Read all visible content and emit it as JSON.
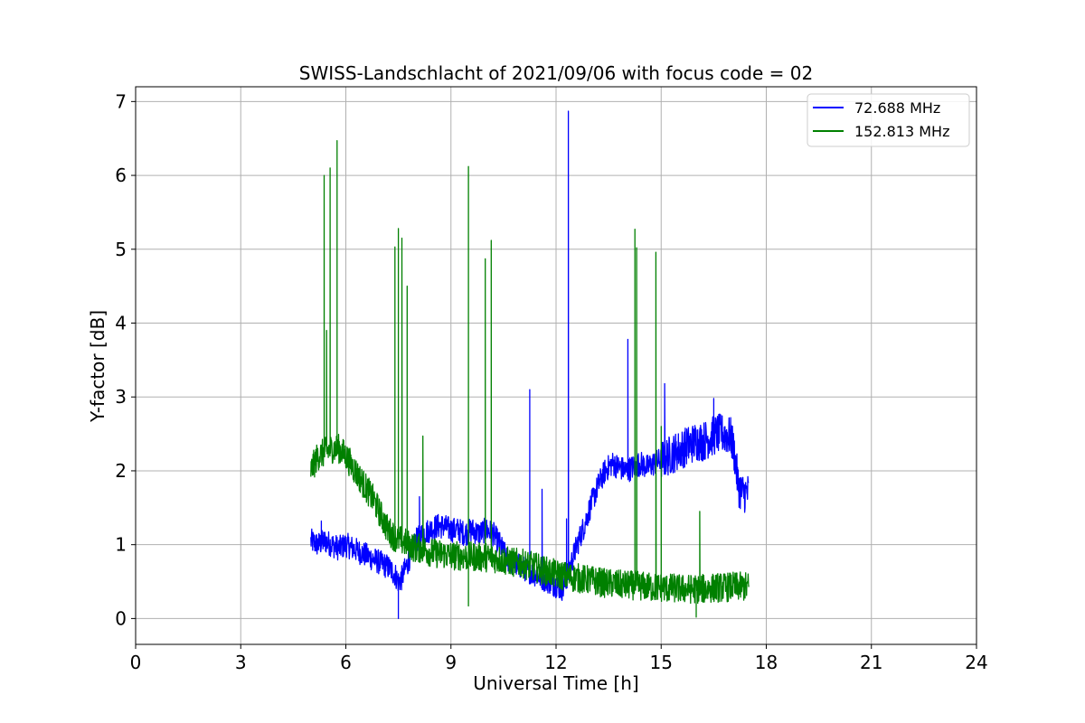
{
  "chart_data": {
    "type": "line",
    "title": "SWISS-Landschlacht of 2021/09/06 with focus code = 02",
    "xlabel": "Universal Time [h]",
    "ylabel": "Y-factor [dB]",
    "xlim": [
      0,
      24
    ],
    "ylim": [
      -0.35,
      7.2
    ],
    "xticks": [
      0,
      3,
      6,
      9,
      12,
      15,
      18,
      21,
      24
    ],
    "yticks": [
      0,
      1,
      2,
      3,
      4,
      5,
      6,
      7
    ],
    "grid": true,
    "legend_position": "top-right",
    "series": [
      {
        "name": "  72.688 MHz",
        "color": "#0000ff",
        "x": [
          5.0,
          5.2,
          5.4,
          5.6,
          5.8,
          6.0,
          6.2,
          6.4,
          6.6,
          6.8,
          7.0,
          7.2,
          7.4,
          7.5,
          7.6,
          7.8,
          8.0,
          8.2,
          8.4,
          8.6,
          8.8,
          9.0,
          9.2,
          9.4,
          9.6,
          9.8,
          10.0,
          10.2,
          10.4,
          10.6,
          10.8,
          11.0,
          11.2,
          11.4,
          11.6,
          11.8,
          12.0,
          12.2,
          12.4,
          12.6,
          12.8,
          13.0,
          13.2,
          13.4,
          13.6,
          13.8,
          14.0,
          14.2,
          14.4,
          14.6,
          14.8,
          15.0,
          15.2,
          15.4,
          15.6,
          15.8,
          16.0,
          16.2,
          16.4,
          16.6,
          16.8,
          17.0,
          17.1,
          17.2,
          17.3,
          17.5
        ],
        "y": [
          1.05,
          1.0,
          1.05,
          1.0,
          0.95,
          1.0,
          0.95,
          0.9,
          0.85,
          0.8,
          0.75,
          0.7,
          0.6,
          0.5,
          0.55,
          0.8,
          1.05,
          1.15,
          1.2,
          1.25,
          1.25,
          1.2,
          1.2,
          1.15,
          1.2,
          1.15,
          1.2,
          1.15,
          1.0,
          0.8,
          0.75,
          0.7,
          0.65,
          0.6,
          0.55,
          0.5,
          0.45,
          0.4,
          0.7,
          1.0,
          1.25,
          1.55,
          1.8,
          2.0,
          2.1,
          2.05,
          2.0,
          2.05,
          2.1,
          2.05,
          2.1,
          2.15,
          2.2,
          2.25,
          2.3,
          2.35,
          2.4,
          2.4,
          2.45,
          2.5,
          2.5,
          2.45,
          2.2,
          1.8,
          1.7,
          1.7
        ],
        "spikes": [
          {
            "x": 5.3,
            "y": 1.32
          },
          {
            "x": 7.5,
            "y": 0.0
          },
          {
            "x": 8.1,
            "y": 1.65
          },
          {
            "x": 11.25,
            "y": 3.1
          },
          {
            "x": 11.6,
            "y": 1.75
          },
          {
            "x": 12.3,
            "y": 1.35
          },
          {
            "x": 12.35,
            "y": 6.87
          },
          {
            "x": 14.05,
            "y": 3.78
          },
          {
            "x": 15.1,
            "y": 3.18
          },
          {
            "x": 16.5,
            "y": 2.98
          }
        ]
      },
      {
        "name": "152.813 MHz",
        "color": "#008000",
        "x": [
          5.0,
          5.2,
          5.4,
          5.6,
          5.8,
          6.0,
          6.2,
          6.4,
          6.6,
          6.8,
          7.0,
          7.2,
          7.4,
          7.6,
          7.8,
          8.0,
          8.2,
          8.4,
          8.6,
          8.8,
          9.0,
          9.2,
          9.4,
          9.6,
          9.8,
          10.0,
          10.2,
          10.4,
          10.6,
          10.8,
          11.0,
          11.2,
          11.4,
          11.6,
          11.8,
          12.0,
          12.2,
          12.4,
          12.6,
          12.8,
          13.0,
          13.2,
          13.4,
          13.6,
          13.8,
          14.0,
          14.2,
          14.4,
          14.6,
          14.8,
          15.0,
          15.2,
          15.4,
          15.6,
          15.8,
          16.0,
          16.2,
          16.4,
          16.6,
          16.8,
          17.0,
          17.2,
          17.5
        ],
        "y": [
          2.0,
          2.2,
          2.25,
          2.3,
          2.3,
          2.2,
          2.05,
          1.9,
          1.75,
          1.6,
          1.4,
          1.2,
          1.1,
          1.05,
          1.0,
          0.95,
          0.95,
          0.9,
          0.88,
          0.87,
          0.85,
          0.85,
          0.84,
          0.84,
          0.83,
          0.83,
          0.82,
          0.8,
          0.78,
          0.76,
          0.75,
          0.72,
          0.7,
          0.66,
          0.63,
          0.6,
          0.58,
          0.56,
          0.55,
          0.53,
          0.52,
          0.5,
          0.48,
          0.47,
          0.46,
          0.45,
          0.45,
          0.44,
          0.43,
          0.42,
          0.42,
          0.41,
          0.41,
          0.4,
          0.4,
          0.4,
          0.4,
          0.41,
          0.42,
          0.42,
          0.43,
          0.43,
          0.43
        ],
        "spikes": [
          {
            "x": 5.38,
            "y": 6.0
          },
          {
            "x": 5.45,
            "y": 3.9
          },
          {
            "x": 5.55,
            "y": 6.1
          },
          {
            "x": 5.75,
            "y": 6.47
          },
          {
            "x": 7.4,
            "y": 5.03
          },
          {
            "x": 7.5,
            "y": 5.28
          },
          {
            "x": 7.6,
            "y": 5.15
          },
          {
            "x": 7.75,
            "y": 4.5
          },
          {
            "x": 8.2,
            "y": 2.47
          },
          {
            "x": 9.5,
            "y": 6.12
          },
          {
            "x": 9.5,
            "y": 0.17
          },
          {
            "x": 9.98,
            "y": 4.87
          },
          {
            "x": 10.15,
            "y": 5.12
          },
          {
            "x": 14.25,
            "y": 5.27
          },
          {
            "x": 14.3,
            "y": 5.02
          },
          {
            "x": 14.85,
            "y": 4.96
          },
          {
            "x": 15.0,
            "y": 2.6
          },
          {
            "x": 16.0,
            "y": 0.02
          },
          {
            "x": 16.1,
            "y": 1.45
          }
        ]
      }
    ]
  }
}
